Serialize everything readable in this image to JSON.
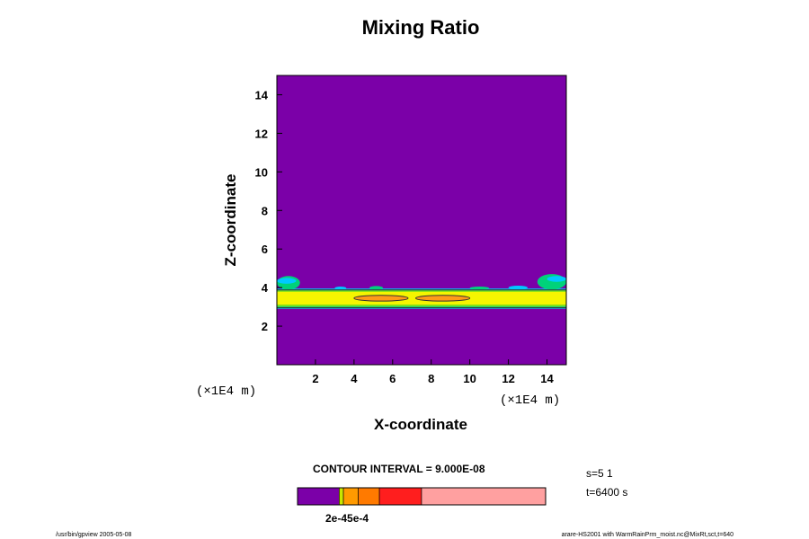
{
  "chart_data": {
    "type": "heatmap",
    "title": "Mixing Ratio",
    "xlabel": "X-coordinate",
    "ylabel": "Z-coordinate",
    "x_unit": "(×1E4 m)",
    "z_unit": "(×1E4 m)",
    "xlim": [
      0,
      15
    ],
    "ylim": [
      0,
      15
    ],
    "x_ticks": [
      "2",
      "4",
      "6",
      "8",
      "10",
      "12",
      "14"
    ],
    "y_ticks": [
      "2",
      "4",
      "6",
      "8",
      "10",
      "12",
      "14"
    ],
    "background_level": "below lowest contour",
    "layer": {
      "z_bottom": 2.9,
      "z_top": 3.9,
      "core_z_range": [
        3.3,
        3.6
      ],
      "core_x_range": [
        4.0,
        10.0
      ],
      "description_levels": [
        "#00c8ff",
        "#00d27a",
        "#7fe01c",
        "#f5f500",
        "#ff9a1a"
      ]
    },
    "contour_interval": "9.000E-08",
    "colorbar": {
      "colors": [
        "#7b00a8",
        "#c8e600",
        "#ff9a00",
        "#ff7a00",
        "#ff1e1e",
        "#ff4a4a",
        "#ffa0a0"
      ],
      "boundaries_fraction": [
        0.0,
        0.168,
        0.185,
        0.245,
        0.33,
        0.5,
        1.0
      ],
      "labels_overlapping": "2e-45e-4"
    },
    "grid": false
  },
  "annotations": {
    "x_unit_left": "(×1E4 m)",
    "contour_interval_text": "CONTOUR INTERVAL = 9.000E-08",
    "s_text": "s=5 1",
    "t_text": "t=6400 s",
    "footer_left": "/usr/bin/gpview 2005-05-08",
    "footer_right": "arare-HS2001 with WarmRainPrm_moist.nc@MixRt,sct,t=640"
  },
  "colors": {
    "background": "#7b00a8",
    "cyan": "#00c8ff",
    "green": "#00d27a",
    "lime": "#7fe01c",
    "yellow": "#f5f500",
    "orange": "#ff9a1a"
  }
}
